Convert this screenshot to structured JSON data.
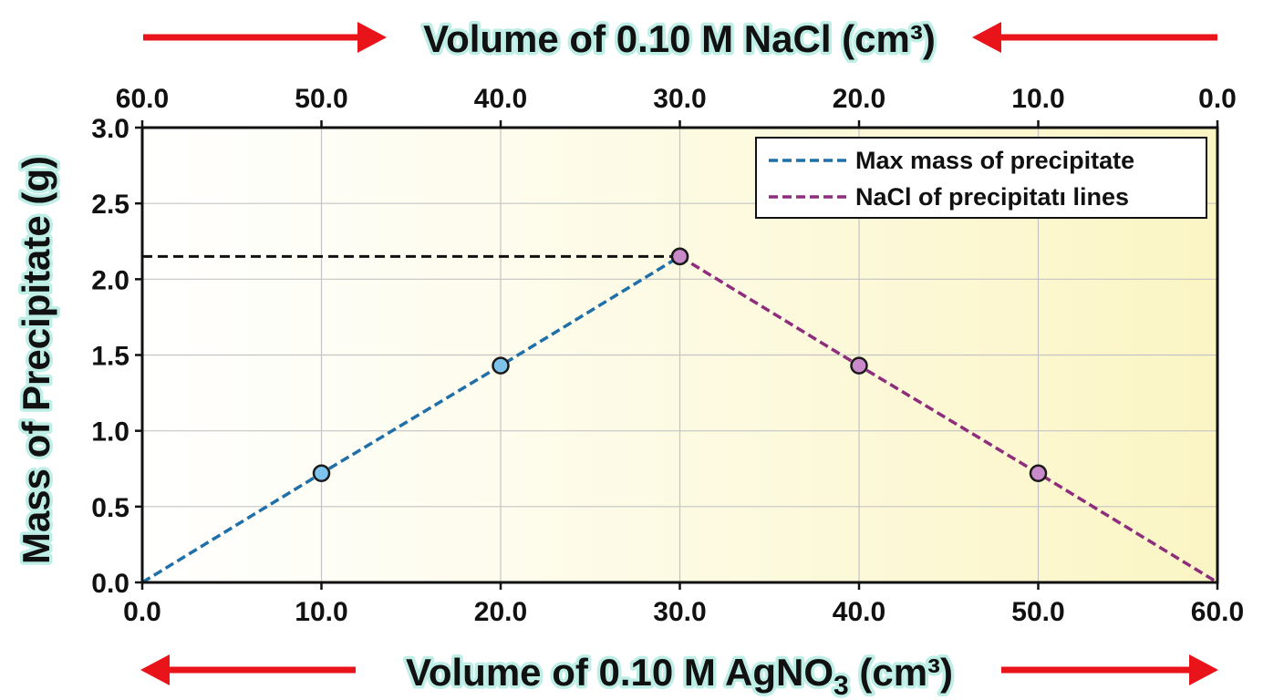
{
  "chart_data": {
    "type": "line",
    "x_axis_bottom": {
      "label_main": "Volume of 0.10 M AgNO",
      "label_sub": "3",
      "label_tail": " (cm³)",
      "ticks": [
        "0.0",
        "10.0",
        "20.0",
        "30.0",
        "40.0",
        "50.0",
        "60.0"
      ],
      "range": [
        0,
        60
      ]
    },
    "x_axis_top": {
      "label": "Volume of 0.10 M NaCl (cm³)",
      "ticks": [
        "60.0",
        "50.0",
        "40.0",
        "30.0",
        "20.0",
        "10.0",
        "0.0"
      ],
      "range": [
        60,
        0
      ]
    },
    "y_axis": {
      "label": "Mass of Precipitate (g)",
      "ticks": [
        "0.0",
        "0.5",
        "1.0",
        "1.5",
        "2.0",
        "2.5",
        "3.0"
      ],
      "range": [
        0,
        3.0
      ]
    },
    "grid": true,
    "legend_position": "top-right",
    "reference_line": {
      "y": 2.15,
      "x_from": 0,
      "x_to": 30,
      "color": "#111111"
    },
    "series": [
      {
        "name": "Max mass of precipitate",
        "color": "#1f6fa8",
        "marker_color": "#7ec3ec",
        "x": [
          0,
          10,
          20,
          30
        ],
        "y": [
          0.0,
          0.72,
          1.43,
          2.15
        ],
        "markers": [
          false,
          true,
          true,
          true
        ]
      },
      {
        "name": "NaCl of precipitatı lines",
        "color": "#8e2d7c",
        "marker_color": "#c98ac9",
        "x": [
          30,
          40,
          50,
          60
        ],
        "y": [
          2.15,
          1.43,
          0.72,
          0.0
        ],
        "markers": [
          true,
          true,
          true,
          false
        ]
      }
    ],
    "arrow_color": "#e8141a"
  }
}
